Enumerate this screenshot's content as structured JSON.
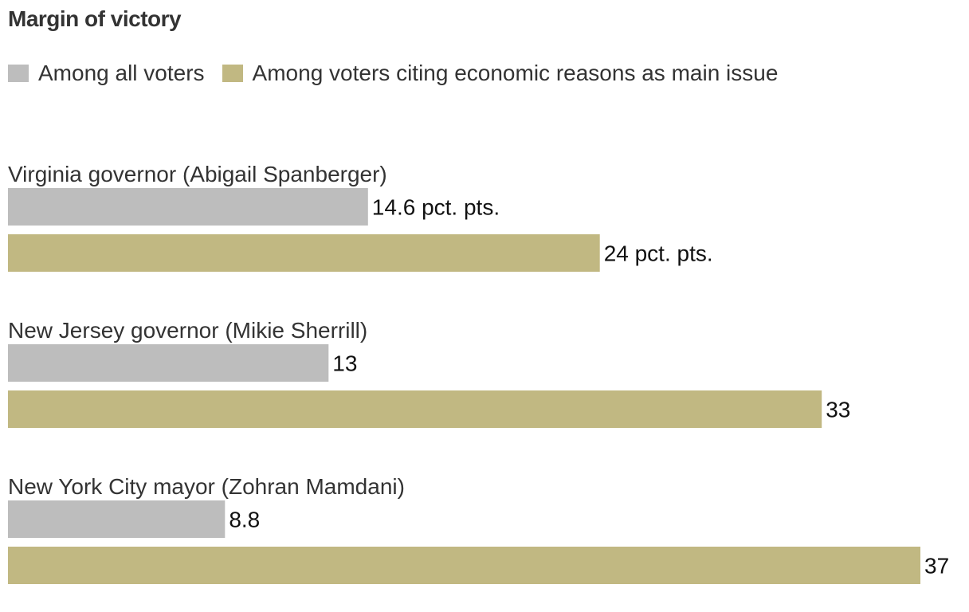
{
  "chart_data": {
    "type": "bar",
    "orientation": "horizontal",
    "title": "Margin of victory",
    "categories": [
      "Virginia governor (Abigail Spanberger)",
      "New Jersey governor (Mikie Sherrill)",
      "New York City mayor (Zohran Mamdani)"
    ],
    "series": [
      {
        "name": "Among all voters",
        "color": "#bdbdbd",
        "values": [
          14.6,
          13,
          8.8
        ],
        "labels": [
          "14.6 pct. pts.",
          "13",
          "8.8"
        ]
      },
      {
        "name": "Among voters citing economic reasons as main issue",
        "color": "#c1b882",
        "values": [
          24,
          33,
          37
        ],
        "labels": [
          "24 pct. pts.",
          "33",
          "37"
        ]
      }
    ],
    "xlim": [
      0,
      37
    ],
    "xlabel": "",
    "ylabel": "",
    "grid": false,
    "legend_position": "top-left"
  }
}
